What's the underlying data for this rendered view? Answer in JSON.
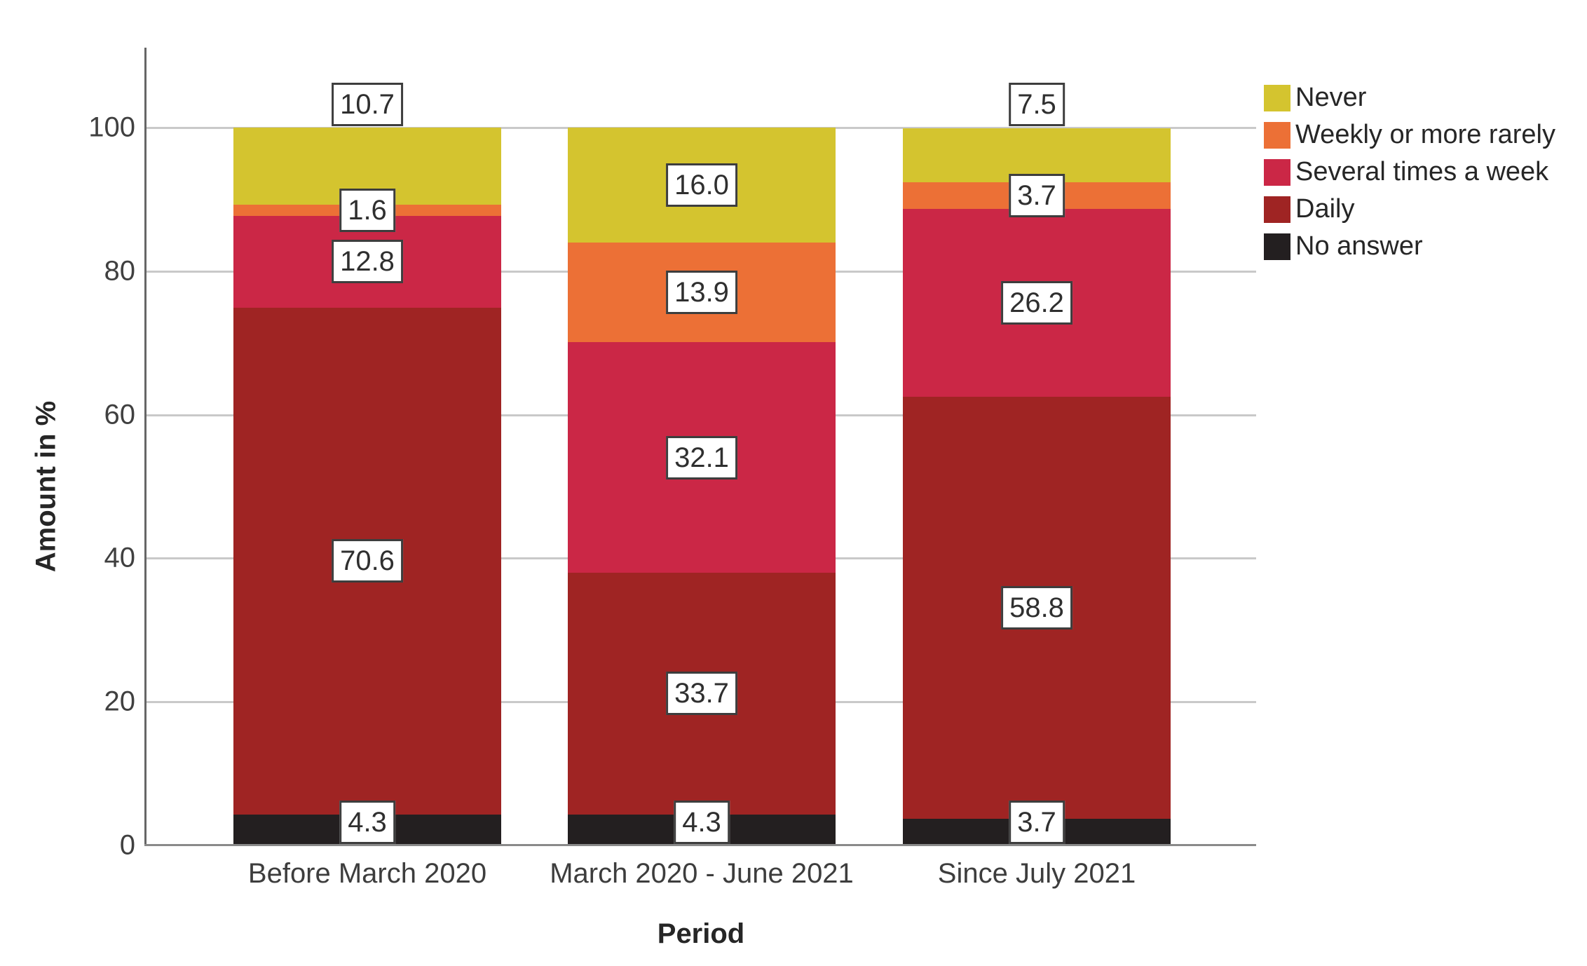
{
  "chart_data": {
    "type": "bar",
    "stacked": true,
    "orientation": "vertical",
    "title": "",
    "xlabel": "Period",
    "ylabel": "Amount in %",
    "ylim": [
      0,
      100
    ],
    "yticks": [
      0,
      20,
      40,
      60,
      80,
      100
    ],
    "grid": true,
    "legend_position": "top-right",
    "categories": [
      "Before March 2020",
      "March 2020 - June 2021",
      "Since July 2021"
    ],
    "series": [
      {
        "name": "No answer",
        "color": "#231f20",
        "values": [
          4.3,
          4.3,
          3.7
        ],
        "labels": [
          "4.3",
          "4.3",
          "3.7"
        ]
      },
      {
        "name": "Daily",
        "color": "#9f2423",
        "values": [
          70.6,
          33.7,
          58.8
        ],
        "labels": [
          "70.6",
          "33.7",
          "58.8"
        ]
      },
      {
        "name": "Several times a week",
        "color": "#cb2746",
        "values": [
          12.8,
          32.1,
          26.2
        ],
        "labels": [
          "12.8",
          "32.1",
          "26.2"
        ]
      },
      {
        "name": "Weekly or more rarely",
        "color": "#ec7036",
        "values": [
          1.6,
          13.9,
          3.7
        ],
        "labels": [
          "1.6",
          "13.9",
          "3.7"
        ]
      },
      {
        "name": "Never",
        "color": "#d4c42f",
        "values": [
          10.7,
          16.0,
          7.5
        ],
        "labels": [
          "10.7",
          "16.0",
          "7.5"
        ]
      }
    ],
    "legend_order": [
      "Never",
      "Weekly or more rarely",
      "Several times a week",
      "Daily",
      "No answer"
    ]
  }
}
